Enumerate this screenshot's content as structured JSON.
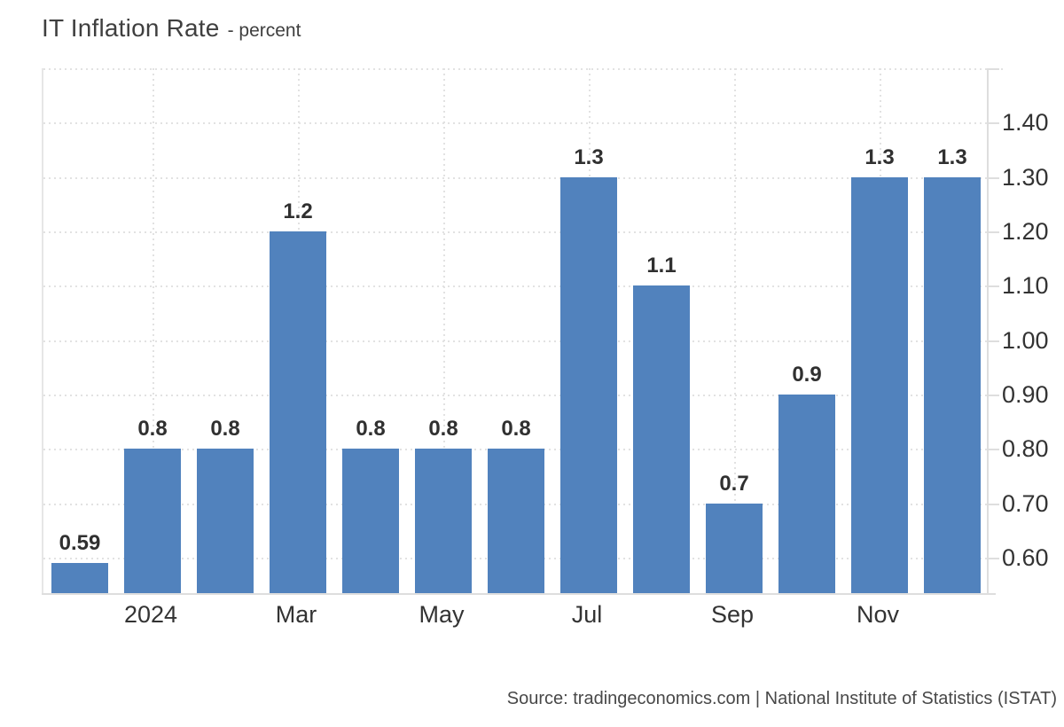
{
  "header": {
    "title": "IT Inflation Rate",
    "subtitle": "- percent"
  },
  "footer": {
    "source": "Source: tradingeconomics.com | National Institute of Statistics (ISTAT)"
  },
  "chart_data": {
    "type": "bar",
    "title": "IT Inflation Rate",
    "subtitle": "- percent",
    "unit": "percent",
    "values": [
      0.59,
      0.8,
      0.8,
      1.2,
      0.8,
      0.8,
      0.8,
      1.3,
      1.1,
      0.7,
      0.9,
      1.3,
      1.3
    ],
    "bar_value_labels": [
      "0.59",
      "0.8",
      "0.8",
      "1.2",
      "0.8",
      "0.8",
      "0.8",
      "1.3",
      "1.1",
      "0.7",
      "0.9",
      "1.3",
      "1.3"
    ],
    "x_ticks": [
      {
        "slot": 1,
        "label": "2024"
      },
      {
        "slot": 3,
        "label": "Mar"
      },
      {
        "slot": 5,
        "label": "May"
      },
      {
        "slot": 7,
        "label": "Jul"
      },
      {
        "slot": 9,
        "label": "Sep"
      },
      {
        "slot": 11,
        "label": "Nov"
      }
    ],
    "y_ticks": [
      {
        "value": 1.4,
        "label": "1.40"
      },
      {
        "value": 1.3,
        "label": "1.30"
      },
      {
        "value": 1.2,
        "label": "1.20"
      },
      {
        "value": 1.1,
        "label": "1.10"
      },
      {
        "value": 1.0,
        "label": "1.00"
      },
      {
        "value": 0.9,
        "label": "0.90"
      },
      {
        "value": 0.8,
        "label": "0.80"
      },
      {
        "value": 0.7,
        "label": "0.70"
      },
      {
        "value": 0.6,
        "label": "0.60"
      }
    ],
    "ylim": [
      0.535,
      1.5
    ],
    "bar_color": "#5182bd",
    "grid": {
      "style": "dotted",
      "color": "#e2e2e2"
    },
    "legend_position": "none",
    "source": "Source: tradingeconomics.com | National Institute of Statistics (ISTAT)"
  }
}
